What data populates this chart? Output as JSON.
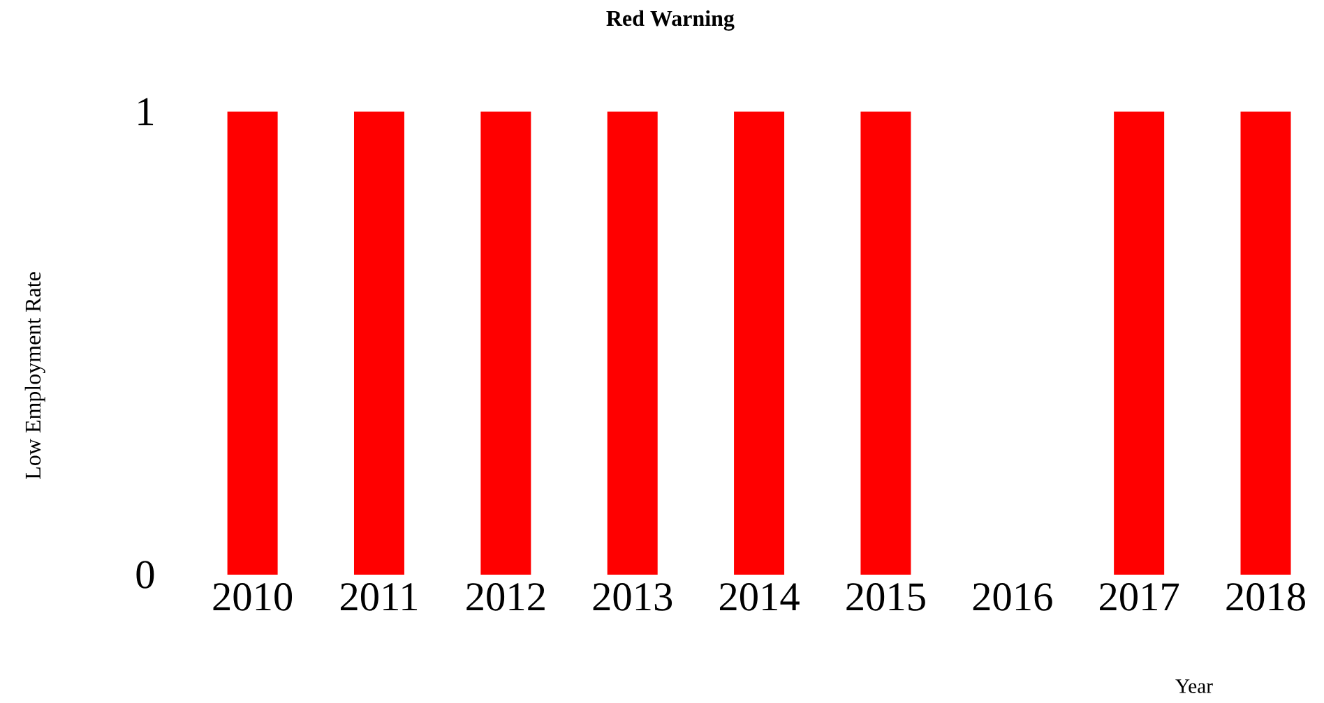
{
  "chart_data": {
    "type": "bar",
    "title": "Red Warning",
    "xlabel": "Year",
    "ylabel": "Low Employment Rate",
    "categories": [
      "2010",
      "2011",
      "2012",
      "2013",
      "2014",
      "2015",
      "2016",
      "2017",
      "2018"
    ],
    "values": [
      1,
      1,
      1,
      1,
      1,
      1,
      0,
      1,
      1
    ],
    "color": "#ff0000",
    "ylim": [
      0,
      1
    ],
    "yticks": [
      0,
      1
    ]
  }
}
